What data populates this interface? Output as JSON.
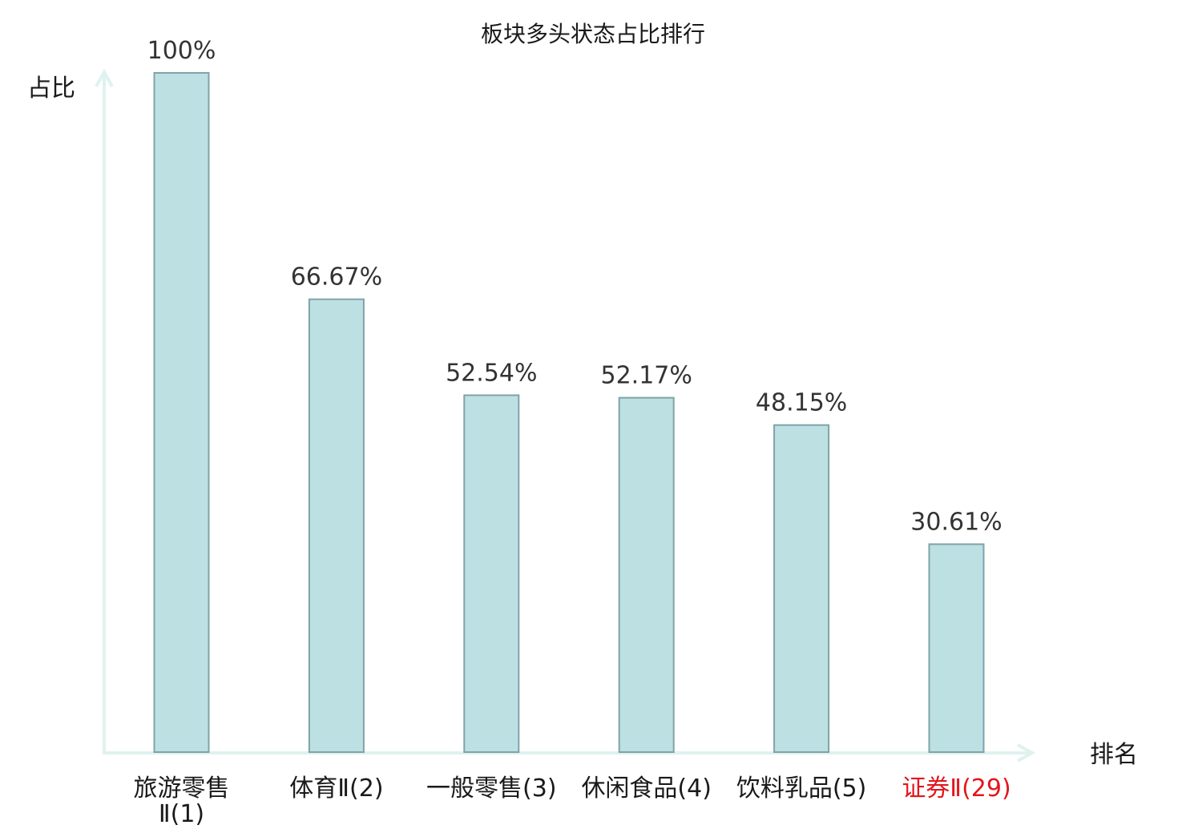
{
  "chart_data": {
    "type": "bar",
    "title": "板块多头状态占比排行",
    "ylabel": "占比",
    "xlabel": "排名",
    "ylim": [
      0,
      100
    ],
    "grid": false,
    "categories": [
      [
        "旅游零售",
        "Ⅱ(1)"
      ],
      [
        "体育Ⅱ(2)"
      ],
      [
        "一般零售(3)"
      ],
      [
        "休闲食品(4)"
      ],
      [
        "饮料乳品(5)"
      ],
      [
        "证券Ⅱ(29)"
      ]
    ],
    "values": [
      100,
      66.67,
      52.54,
      52.17,
      48.15,
      30.61
    ],
    "value_labels": [
      "100%",
      "66.67%",
      "52.54%",
      "52.17%",
      "48.15%",
      "30.61%"
    ],
    "highlight_index": 5
  },
  "colors": {
    "bar_fill": "#bde0e3",
    "bar_stroke": "#7fa3a8",
    "axis": "#dff2ef",
    "text": "#1a1a1a",
    "value_text": "#333333",
    "highlight_text": "#e3161c"
  }
}
